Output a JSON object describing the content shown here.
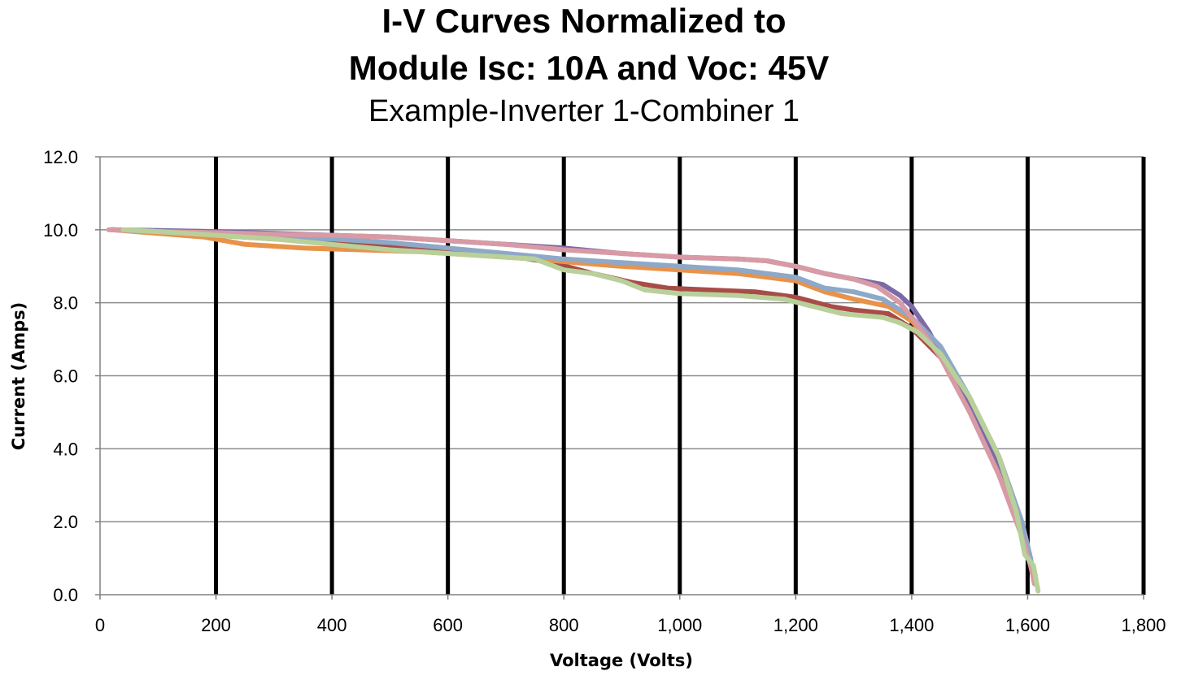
{
  "chart_data": {
    "type": "line",
    "title_line1": "I-V Curves Normalized to",
    "title_line2": "Module Isc: 10A and Voc: 45V",
    "subtitle": "Example-Inverter 1-Combiner 1",
    "xlabel": "Voltage (Volts)",
    "ylabel": "Current (Amps)",
    "xlim": [
      0,
      1800
    ],
    "ylim": [
      0,
      12
    ],
    "x_ticks": [
      "0",
      "200",
      "400",
      "600",
      "800",
      "1,000",
      "1,200",
      "1,400",
      "1,600",
      "1,800"
    ],
    "y_ticks": [
      "0.0",
      "2.0",
      "4.0",
      "6.0",
      "8.0",
      "10.0",
      "12.0"
    ],
    "grid": {
      "horizontal": true,
      "vertical": true,
      "vertical_style": "bold"
    },
    "legend": "none",
    "series": [
      {
        "color": "#a84c48",
        "x": [
          20,
          100,
          200,
          300,
          400,
          500,
          600,
          700,
          780,
          850,
          920,
          980,
          1050,
          1130,
          1200,
          1260,
          1300,
          1360,
          1400,
          1450,
          1500,
          1550,
          1590,
          1605,
          1612
        ],
        "y": [
          10.0,
          9.95,
          9.85,
          9.75,
          9.65,
          9.55,
          9.4,
          9.3,
          9.1,
          8.8,
          8.55,
          8.4,
          8.35,
          8.3,
          8.15,
          7.9,
          7.8,
          7.7,
          7.3,
          6.5,
          5.3,
          3.6,
          1.8,
          0.9,
          0.3
        ]
      },
      {
        "color": "#e8924a",
        "x": [
          20,
          100,
          180,
          250,
          350,
          450,
          550,
          650,
          750,
          820,
          900,
          1000,
          1100,
          1200,
          1250,
          1300,
          1360,
          1400,
          1450,
          1500,
          1550,
          1590,
          1605,
          1612
        ],
        "y": [
          10.0,
          9.9,
          9.8,
          9.6,
          9.5,
          9.45,
          9.4,
          9.3,
          9.2,
          9.1,
          9.0,
          8.9,
          8.8,
          8.6,
          8.3,
          8.1,
          7.9,
          7.5,
          6.7,
          5.4,
          3.8,
          2.0,
          1.0,
          0.3
        ]
      },
      {
        "color": "#7c6aa8",
        "x": [
          20,
          100,
          200,
          300,
          400,
          500,
          600,
          700,
          800,
          900,
          1000,
          1100,
          1150,
          1200,
          1250,
          1300,
          1350,
          1380,
          1400,
          1430,
          1470,
          1510,
          1550,
          1590,
          1605,
          1612
        ],
        "y": [
          10.0,
          9.98,
          9.95,
          9.9,
          9.85,
          9.8,
          9.7,
          9.6,
          9.5,
          9.35,
          9.25,
          9.2,
          9.15,
          9.0,
          8.8,
          8.65,
          8.5,
          8.2,
          7.9,
          7.2,
          6.0,
          4.8,
          3.5,
          1.8,
          0.9,
          0.3
        ]
      },
      {
        "color": "#8ea8c8",
        "x": [
          20,
          100,
          200,
          300,
          400,
          500,
          600,
          700,
          800,
          900,
          1000,
          1100,
          1200,
          1250,
          1300,
          1350,
          1400,
          1450,
          1500,
          1550,
          1590,
          1605,
          1612
        ],
        "y": [
          10.0,
          9.95,
          9.9,
          9.8,
          9.75,
          9.65,
          9.5,
          9.35,
          9.2,
          9.1,
          9.0,
          8.9,
          8.7,
          8.4,
          8.3,
          8.1,
          7.6,
          6.8,
          5.4,
          3.8,
          2.0,
          1.0,
          0.3
        ]
      },
      {
        "color": "#d89aa4",
        "x": [
          15,
          100,
          200,
          300,
          400,
          500,
          600,
          700,
          800,
          900,
          1000,
          1100,
          1150,
          1200,
          1250,
          1300,
          1340,
          1380,
          1410,
          1450,
          1500,
          1550,
          1590,
          1605,
          1612
        ],
        "y": [
          10.0,
          9.95,
          9.92,
          9.88,
          9.85,
          9.8,
          9.7,
          9.6,
          9.45,
          9.35,
          9.25,
          9.2,
          9.15,
          9.0,
          8.8,
          8.65,
          8.45,
          8.0,
          7.4,
          6.5,
          5.0,
          3.3,
          1.6,
          0.8,
          0.3
        ]
      },
      {
        "color": "#b8d09a",
        "x": [
          40,
          100,
          200,
          300,
          400,
          500,
          600,
          700,
          750,
          800,
          850,
          900,
          940,
          1000,
          1100,
          1180,
          1230,
          1280,
          1350,
          1380,
          1410,
          1450,
          1500,
          1550,
          1580,
          1595,
          1610,
          1618
        ],
        "y": [
          10.0,
          9.95,
          9.85,
          9.75,
          9.6,
          9.45,
          9.35,
          9.25,
          9.2,
          8.9,
          8.8,
          8.6,
          8.35,
          8.25,
          8.2,
          8.1,
          7.9,
          7.7,
          7.6,
          7.45,
          7.2,
          6.6,
          5.4,
          3.8,
          2.3,
          1.1,
          0.8,
          0.1
        ]
      }
    ]
  }
}
